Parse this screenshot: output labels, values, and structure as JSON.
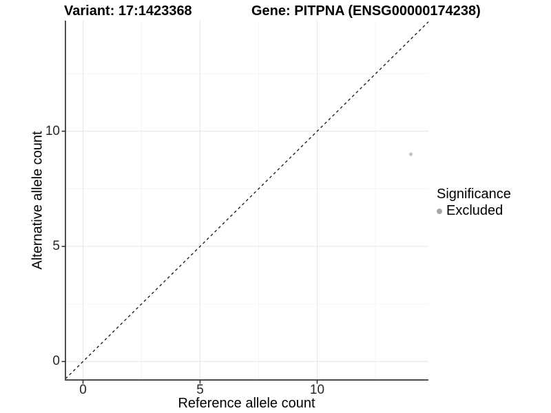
{
  "titles": {
    "variant": "Variant: 17:1423368",
    "gene": "Gene: PITPNA (ENSG00000174238)"
  },
  "chart_data": {
    "type": "scatter",
    "title": "Variant: 17:1423368 — Gene: PITPNA (ENSG00000174238)",
    "xlabel": "Reference allele count",
    "ylabel": "Alternative allele count",
    "xlim": [
      -0.75,
      14.75
    ],
    "ylim": [
      -0.8,
      14.8
    ],
    "x_ticks": [
      0,
      5,
      10
    ],
    "y_ticks": [
      0,
      5,
      10
    ],
    "x_minor_ticks": [
      2.5,
      7.5,
      12.5
    ],
    "y_minor_ticks": [
      2.5,
      7.5,
      12.5
    ],
    "grid": "major+minor",
    "points": [
      {
        "x": 14,
        "y": 9,
        "significance": "Excluded"
      }
    ],
    "point_color": "#c3c3c3",
    "point_radius": 2.6,
    "identity_line": {
      "equation": "y = x",
      "style": "dashed",
      "color": "#111111"
    },
    "legend": {
      "title": "Significance",
      "position": "right",
      "entries": [
        {
          "label": "Excluded",
          "color": "#a6a6a6"
        }
      ]
    }
  },
  "colors": {
    "background": "#ffffff",
    "grid_major": "#e8e8e8",
    "grid_minor": "#f4f4f4",
    "axis_line": "#4d4d4d",
    "tick_mark": "#333333",
    "tick_label": "#262626"
  }
}
